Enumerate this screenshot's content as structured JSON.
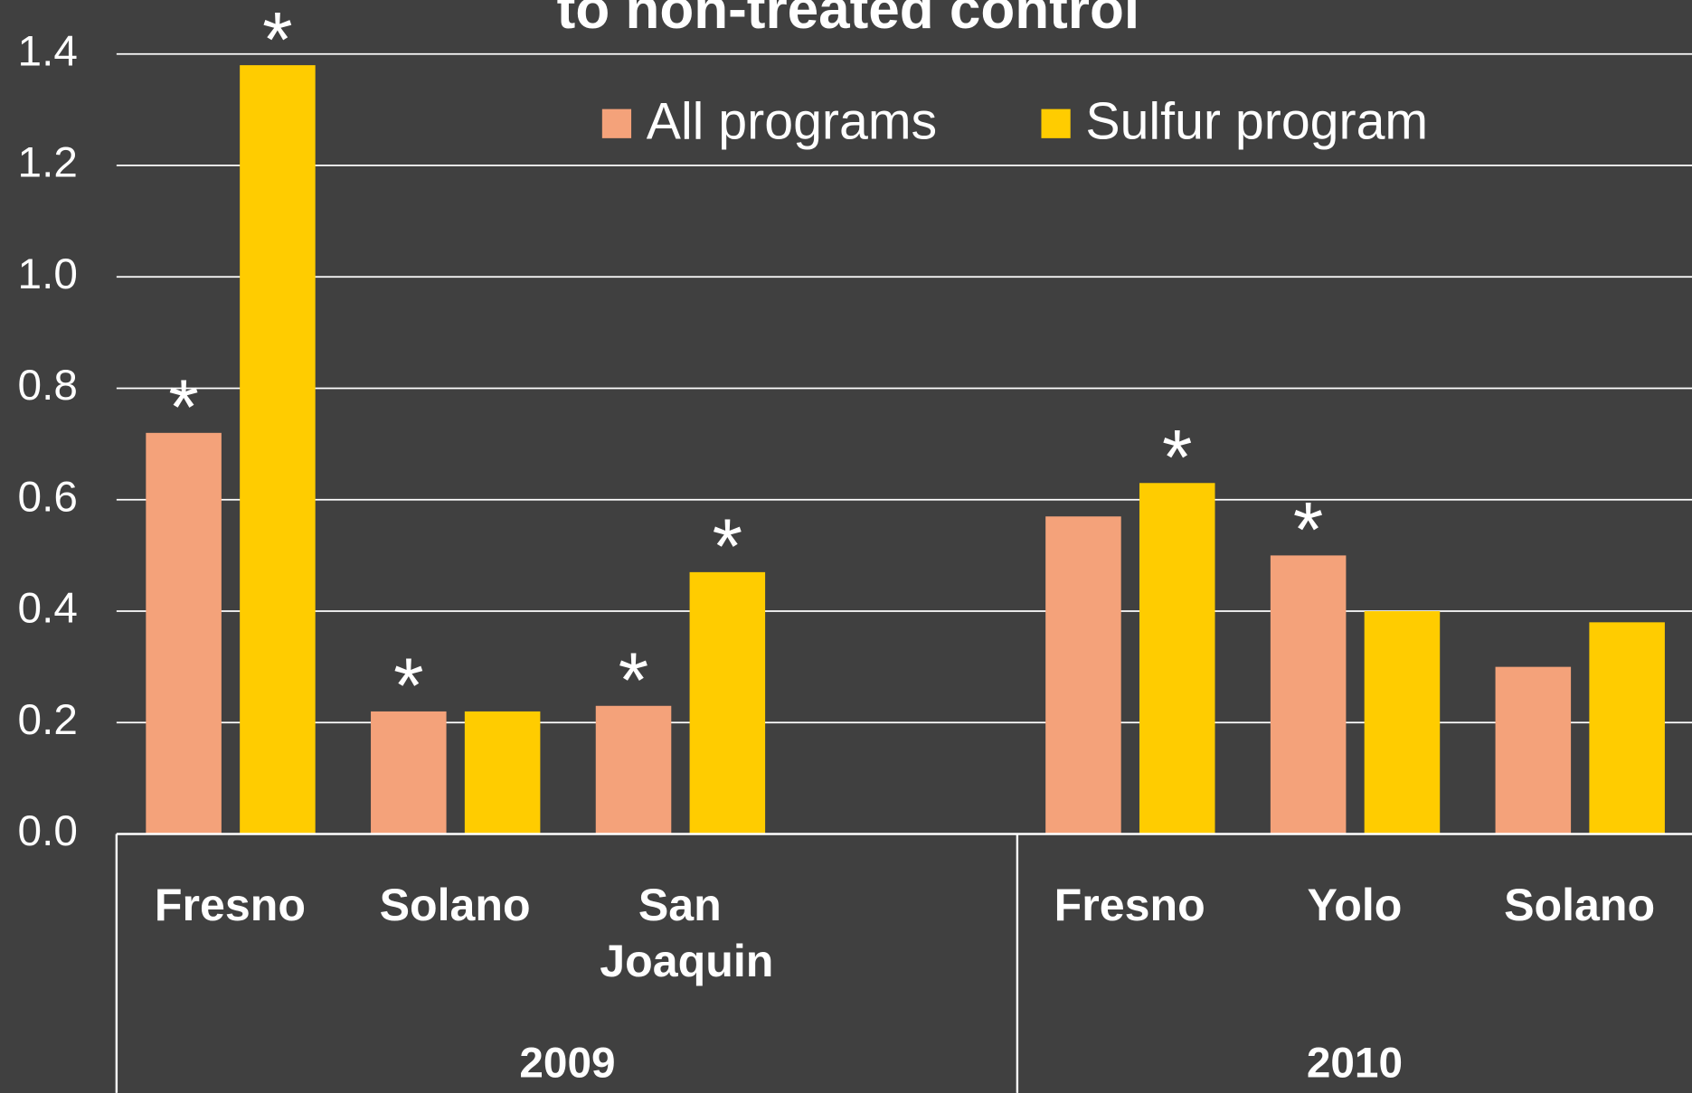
{
  "chart_data": {
    "type": "bar",
    "title": "to non-treated control",
    "categories": [
      "Fresno",
      "Solano",
      "San Joaquin",
      null,
      "Fresno",
      "Yolo",
      "Solano"
    ],
    "groups": [
      {
        "name": "2009",
        "size": 4
      },
      {
        "name": "2010",
        "size": 3
      }
    ],
    "series": [
      {
        "name": "All programs",
        "color": "#F4A27A",
        "values": [
          0.72,
          0.22,
          0.23,
          null,
          0.57,
          0.5,
          0.3
        ],
        "markers": [
          "*",
          "*",
          "*",
          null,
          null,
          "*",
          null
        ]
      },
      {
        "name": "Sulfur program",
        "color": "#FFCC00",
        "values": [
          1.38,
          0.22,
          0.47,
          null,
          0.63,
          0.4,
          0.38
        ],
        "markers": [
          "*",
          null,
          "*",
          null,
          "*",
          null,
          null
        ]
      }
    ],
    "ylim": [
      0,
      1.4
    ],
    "yticks": [
      {
        "value": 0,
        "label": "0.0"
      },
      0.2,
      0.4,
      0.6,
      0.8,
      {
        "value": 1,
        "label": "1.0"
      },
      1.2,
      1.4
    ],
    "grid": true,
    "legend": "top"
  }
}
